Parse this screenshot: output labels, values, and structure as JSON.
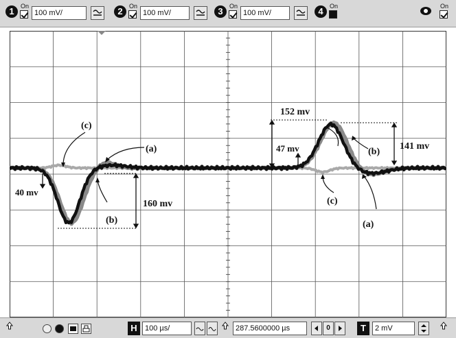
{
  "channels": [
    {
      "num": "1",
      "on_label": "On",
      "scale": "100 mV/",
      "enabled": true
    },
    {
      "num": "2",
      "on_label": "On",
      "scale": "100 mV/",
      "enabled": true
    },
    {
      "num": "3",
      "on_label": "On",
      "scale": "100 mV/",
      "enabled": true
    },
    {
      "num": "4",
      "on_label": "On",
      "enabled": false
    }
  ],
  "display_on_label": "On",
  "annotations": {
    "c_left": "(c)",
    "a_left": "(a)",
    "b_left": "(b)",
    "v40": "40 mv",
    "v160": "160 mv",
    "v152": "152 mv",
    "v47": "47 mv",
    "b_right": "(b)",
    "v141": "141 mv",
    "c_right": "(c)",
    "a_right": "(a)"
  },
  "bottom": {
    "h_key": "H",
    "timebase": "100 µs/",
    "position": "287.5600000 µs",
    "nav_value": "0",
    "t_key": "T",
    "trigger": "2 mV"
  },
  "colors": {
    "trace_black": "#111111",
    "trace_gray": "#8a8a8a",
    "trace_light": "#a9a9a9",
    "grid": "#555555"
  }
}
